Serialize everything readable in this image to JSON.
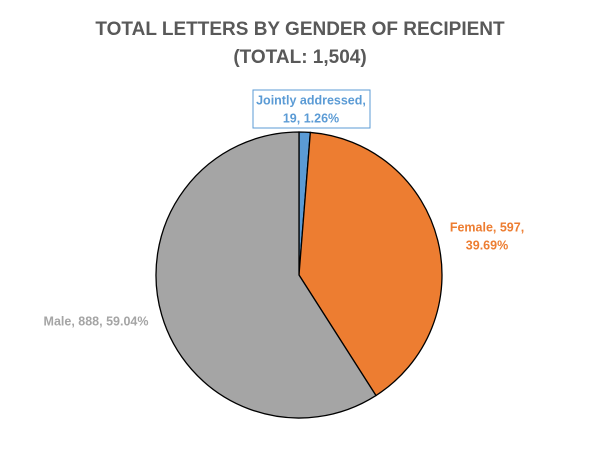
{
  "chart_data": {
    "type": "pie",
    "title": "TOTAL LETTERS BY GENDER OF RECIPIENT",
    "subtitle": "(TOTAL: 1,504)",
    "values": [
      19,
      597,
      888
    ],
    "value_labels": [
      [
        "Jointly addressed,",
        "19, 1.26%"
      ],
      [
        "Female, 597,",
        "39.69%"
      ],
      [
        "Male, 888, 59.04%"
      ]
    ],
    "colors": [
      "#5b9bd5",
      "#ed7d31",
      "#a5a5a5"
    ]
  }
}
